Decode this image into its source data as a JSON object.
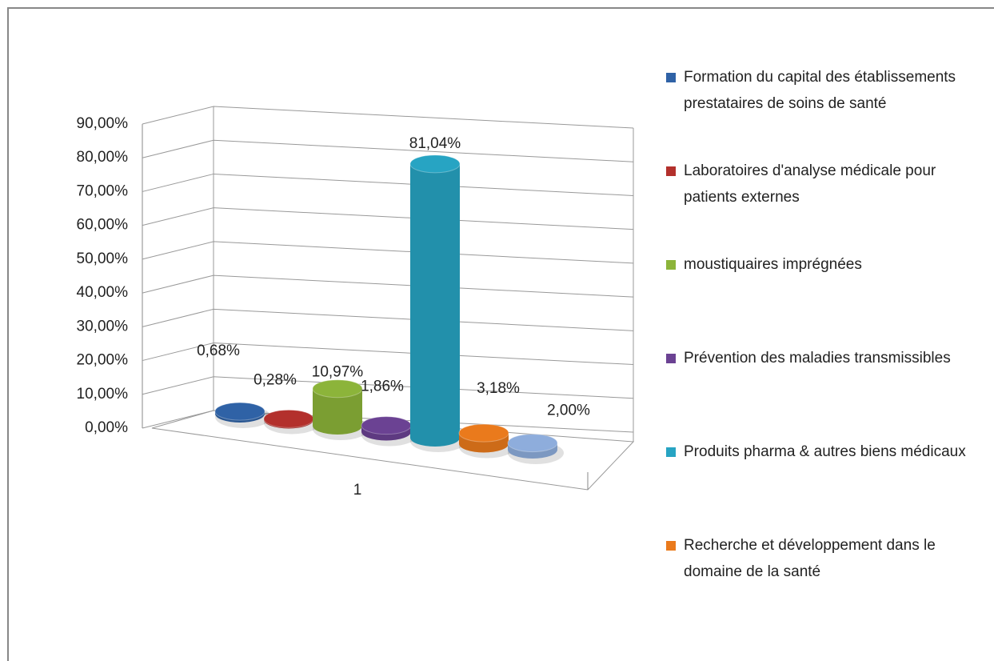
{
  "chart_data": {
    "type": "bar",
    "categories": [
      "1"
    ],
    "series": [
      {
        "name": "Formation du capital des établissements prestataires de soins de santé",
        "color": "#2f62a6",
        "values": [
          0.68
        ],
        "value_labels": [
          "0,68%"
        ]
      },
      {
        "name": "Laboratoires d'analyse médicale pour patients externes",
        "color": "#b3302c",
        "values": [
          0.28
        ],
        "value_labels": [
          "0,28%"
        ]
      },
      {
        "name": "moustiquaires imprégnées",
        "color": "#8cb43a",
        "values": [
          10.97
        ],
        "value_labels": [
          "10,97%"
        ]
      },
      {
        "name": "Prévention des maladies transmissibles",
        "color": "#6b4293",
        "values": [
          1.86
        ],
        "value_labels": [
          "1,86%"
        ]
      },
      {
        "name": "Produits pharma & autres biens médicaux",
        "color": "#27a4c3",
        "values": [
          81.04
        ],
        "value_labels": [
          "81,04%"
        ]
      },
      {
        "name": "Recherche et développement dans le domaine de la santé",
        "color": "#ea7a1c",
        "values": [
          3.18
        ],
        "value_labels": [
          "3,18%"
        ]
      },
      {
        "name": null,
        "color": "#8eaddc",
        "values": [
          2.0
        ],
        "value_labels": [
          "2,00%"
        ]
      }
    ],
    "ylim": [
      0,
      90
    ],
    "yticks": [
      {
        "value": 0,
        "label": "0,00%"
      },
      {
        "value": 10,
        "label": "10,00%"
      },
      {
        "value": 20,
        "label": "20,00%"
      },
      {
        "value": 30,
        "label": "30,00%"
      },
      {
        "value": 40,
        "label": "40,00%"
      },
      {
        "value": 50,
        "label": "50,00%"
      },
      {
        "value": 60,
        "label": "60,00%"
      },
      {
        "value": 70,
        "label": "70,00%"
      },
      {
        "value": 80,
        "label": "80,00%"
      },
      {
        "value": 90,
        "label": "90,00%"
      }
    ],
    "grid": true,
    "legend": "right"
  }
}
